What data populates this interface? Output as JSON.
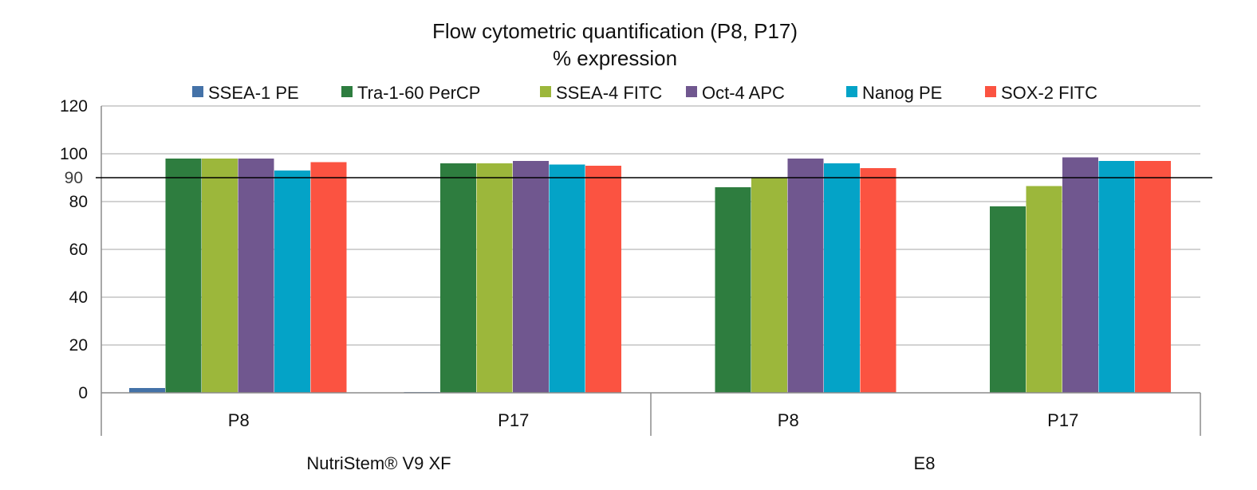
{
  "chart_data": {
    "type": "bar",
    "title": "Flow cytometric quantification (P8, P17)",
    "subtitle": "% expression",
    "categories": [
      "P8",
      "P17",
      "P8",
      "P17"
    ],
    "groups": [
      {
        "label": "NutriStem® V9 XF",
        "categories": [
          "P8",
          "P17"
        ]
      },
      {
        "label": "E8",
        "categories": [
          "P8",
          "P17"
        ]
      }
    ],
    "series": [
      {
        "name": "SSEA-1 PE",
        "color": "#4472a8",
        "values": [
          2,
          0.3,
          0,
          0
        ]
      },
      {
        "name": "Tra-1-60 PerCP",
        "color": "#2e7d3f",
        "values": [
          98,
          96,
          86,
          78
        ]
      },
      {
        "name": "SSEA-4 FITC",
        "color": "#9cb73b",
        "values": [
          98,
          96,
          90,
          86.5
        ]
      },
      {
        "name": "Oct-4 APC",
        "color": "#70578f",
        "values": [
          98,
          97,
          98,
          98.5
        ]
      },
      {
        "name": "Nanog PE",
        "color": "#04a3c7",
        "values": [
          93,
          95.5,
          96,
          97
        ]
      },
      {
        "name": "SOX-2 FITC",
        "color": "#fb5341",
        "values": [
          96.5,
          95,
          94,
          97
        ]
      }
    ],
    "ylim": [
      0,
      120
    ],
    "yticks": [
      0,
      20,
      40,
      60,
      80,
      100,
      120
    ],
    "reference_line": {
      "value": 90,
      "label": "90",
      "label_color": "#3d3d3d"
    },
    "grid": true,
    "legend_position": "top"
  }
}
